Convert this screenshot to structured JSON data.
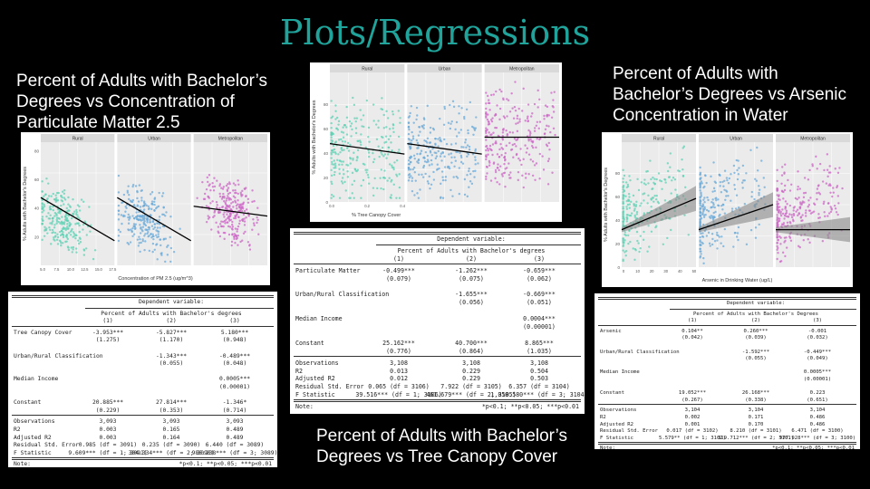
{
  "slide": {
    "title": "Plots/Regressions"
  },
  "captions": {
    "pm25": "Percent of Adults with Bachelor’s Degrees vs Concentration of Particulate Matter 2.5",
    "tree": "Percent of Adults with Bachelor’s Degrees vs Tree Canopy Cover",
    "arsenic": "Percent of Adults with Bachelor’s Degrees vs Arsenic Concentration in Water"
  },
  "plots": {
    "pm25": {
      "facets": [
        "Rural",
        "Urban",
        "Metropolitan"
      ],
      "ylabel": "% Adults with Bachelor's Degrees",
      "xlabel": "Concentration of PM 2.5 (ug/m^3)",
      "yticks": [
        "20",
        "40",
        "60",
        "80"
      ],
      "xticks": [
        "5.0",
        "7.5",
        "10.0",
        "12.5",
        "15.0",
        "17.5"
      ],
      "colors": [
        "#5fd1b4",
        "#6aaad8",
        "#cc66c6"
      ]
    },
    "tree": {
      "facets": [
        "Rural",
        "Urban",
        "Metropolitan"
      ],
      "ylabel": "% Adults with Bachelor's Degrees",
      "xlabel": "% Tree Canopy Cover",
      "yticks": [
        "0",
        "20",
        "40",
        "60",
        "80"
      ],
      "xticks": [
        "0.0",
        "0.2",
        "0.4"
      ],
      "colors": [
        "#5fd1b4",
        "#6aaad8",
        "#cc66c6"
      ]
    },
    "arsenic": {
      "facets": [
        "Rural",
        "Urban",
        "Metropolitan"
      ],
      "ylabel": "% Adults with Bachelor's Degrees",
      "xlabel": "Arsenic in Drinking Water (ug/L)",
      "yticks": [
        "0",
        "20",
        "40",
        "60",
        "80"
      ],
      "xticks": [
        "0",
        "10",
        "20",
        "30",
        "40",
        "50"
      ],
      "colors": [
        "#5fd1b4",
        "#6aaad8",
        "#cc66c6"
      ]
    }
  },
  "tables": {
    "tree": {
      "dep_header": "Dependent variable:",
      "dep_var": "Percent of Adults with Bachelor's degrees",
      "cols": [
        "(1)",
        "(2)",
        "(3)"
      ],
      "rows": [
        {
          "label": "Tree Canopy Cover",
          "vals": [
            "-3.953***",
            "-5.827***",
            "5.180***"
          ]
        },
        {
          "label": "",
          "vals": [
            "(1.275)",
            "(1.170)",
            "(0.948)"
          ]
        },
        {
          "label": "",
          "vals": [
            "",
            "",
            ""
          ]
        },
        {
          "label": "Urban/Rural Classification",
          "vals": [
            "",
            "-1.343***",
            "-0.489***"
          ]
        },
        {
          "label": "",
          "vals": [
            "",
            "(0.055)",
            "(0.048)"
          ]
        },
        {
          "label": "",
          "vals": [
            "",
            "",
            ""
          ]
        },
        {
          "label": "Median Income",
          "vals": [
            "",
            "",
            "0.0005***"
          ]
        },
        {
          "label": "",
          "vals": [
            "",
            "",
            "(0.00001)"
          ]
        },
        {
          "label": "",
          "vals": [
            "",
            "",
            ""
          ]
        },
        {
          "label": "Constant",
          "vals": [
            "20.885***",
            "27.814***",
            "-1.346*"
          ]
        },
        {
          "label": "",
          "vals": [
            "(0.229)",
            "(0.353)",
            "(0.714)"
          ]
        }
      ],
      "stats": [
        {
          "label": "Observations",
          "vals": [
            "3,093",
            "3,093",
            "3,093"
          ]
        },
        {
          "label": "R2",
          "vals": [
            "0.003",
            "0.165",
            "0.489"
          ]
        },
        {
          "label": "Adjusted R2",
          "vals": [
            "0.003",
            "0.164",
            "0.489"
          ]
        },
        {
          "label": "Residual Std. Error",
          "vals": [
            "0.985 (df = 3091)",
            "0.235 (df = 3090)",
            "6.440 (df = 3089)"
          ]
        },
        {
          "label": "F Statistic",
          "vals": [
            "9.609*** (df = 1; 3091)",
            "304.334*** (df = 2; 3090)",
            "986.238*** (df = 3; 3089)"
          ]
        }
      ],
      "note_label": "Note:",
      "note_text": "*p<0.1; **p<0.05; ***p<0.01"
    },
    "pm25": {
      "dep_header": "Dependent variable:",
      "dep_var": "Percent of Adults with Bachelor's degrees",
      "cols": [
        "(1)",
        "(2)",
        "(3)"
      ],
      "rows": [
        {
          "label": "Particulate Matter",
          "vals": [
            "-0.499***",
            "-1.262***",
            "-0.659***"
          ]
        },
        {
          "label": "",
          "vals": [
            "(0.079)",
            "(0.075)",
            "(0.062)"
          ]
        },
        {
          "label": "",
          "vals": [
            "",
            "",
            ""
          ]
        },
        {
          "label": "Urban/Rural Classification",
          "vals": [
            "",
            "-1.655***",
            "-0.669***"
          ]
        },
        {
          "label": "",
          "vals": [
            "",
            "(0.056)",
            "(0.051)"
          ]
        },
        {
          "label": "",
          "vals": [
            "",
            "",
            ""
          ]
        },
        {
          "label": "Median Income",
          "vals": [
            "",
            "",
            "0.0004***"
          ]
        },
        {
          "label": "",
          "vals": [
            "",
            "",
            "(0.00001)"
          ]
        },
        {
          "label": "",
          "vals": [
            "",
            "",
            ""
          ]
        },
        {
          "label": "Constant",
          "vals": [
            "25.162***",
            "40.700***",
            "8.865***"
          ]
        },
        {
          "label": "",
          "vals": [
            "(0.776)",
            "(0.864)",
            "(1.035)"
          ]
        }
      ],
      "stats": [
        {
          "label": "Observations",
          "vals": [
            "3,108",
            "3,108",
            "3,108"
          ]
        },
        {
          "label": "R2",
          "vals": [
            "0.013",
            "0.229",
            "0.504"
          ]
        },
        {
          "label": "Adjusted R2",
          "vals": [
            "0.012",
            "0.229",
            "0.503"
          ]
        },
        {
          "label": "Residual Std. Error",
          "vals": [
            "0.065 (df = 3106)",
            "7.922 (df = 3105)",
            "6.357 (df = 3104)"
          ]
        },
        {
          "label": "F Statistic",
          "vals": [
            "39.516*** (df = 1; 3106)",
            "461.679*** (df = 2; 3105)",
            "1,050.580*** (df = 3; 3104)"
          ]
        }
      ],
      "note_label": "Note:",
      "note_text": "*p<0.1; **p<0.05; ***p<0.01"
    },
    "arsenic": {
      "dep_header": "Dependent variable:",
      "dep_var": "Percent of Adults with Bachelor's Degrees",
      "cols": [
        "(1)",
        "(2)",
        "(3)"
      ],
      "rows": [
        {
          "label": "Arsenic",
          "vals": [
            "0.104**",
            "0.260***",
            "-0.001"
          ]
        },
        {
          "label": "",
          "vals": [
            "(0.042)",
            "(0.039)",
            "(0.032)"
          ]
        },
        {
          "label": "",
          "vals": [
            "",
            "",
            ""
          ]
        },
        {
          "label": "Urban/Rural Classification",
          "vals": [
            "",
            "-1.592***",
            "-0.449***"
          ]
        },
        {
          "label": "",
          "vals": [
            "",
            "(0.055)",
            "(0.049)"
          ]
        },
        {
          "label": "",
          "vals": [
            "",
            "",
            ""
          ]
        },
        {
          "label": "Median Income",
          "vals": [
            "",
            "",
            "0.0005***"
          ]
        },
        {
          "label": "",
          "vals": [
            "",
            "",
            "(0.00001)"
          ]
        },
        {
          "label": "",
          "vals": [
            "",
            "",
            ""
          ]
        },
        {
          "label": "Constant",
          "vals": [
            "19.052***",
            "26.168***",
            "0.223"
          ]
        },
        {
          "label": "",
          "vals": [
            "(0.267)",
            "(0.338)",
            "(0.651)"
          ]
        }
      ],
      "stats": [
        {
          "label": "Observations",
          "vals": [
            "3,104",
            "3,104",
            "3,104"
          ]
        },
        {
          "label": "R2",
          "vals": [
            "0.002",
            "0.171",
            "0.486"
          ]
        },
        {
          "label": "Adjusted R2",
          "vals": [
            "0.001",
            "0.170",
            "0.486"
          ]
        },
        {
          "label": "Residual Std. Error",
          "vals": [
            "0.017 (df = 3102)",
            "8.210 (df = 3101)",
            "6.471 (df = 3100)"
          ]
        },
        {
          "label": "F Statistic",
          "vals": [
            "5.579** (df = 1; 3102)",
            "319.712*** (df = 2; 3101)",
            "977.928*** (df = 3; 3100)"
          ]
        }
      ],
      "note_label": "Note:",
      "note_text": "*p<0.1; **p<0.05; ***p<0.01"
    }
  }
}
